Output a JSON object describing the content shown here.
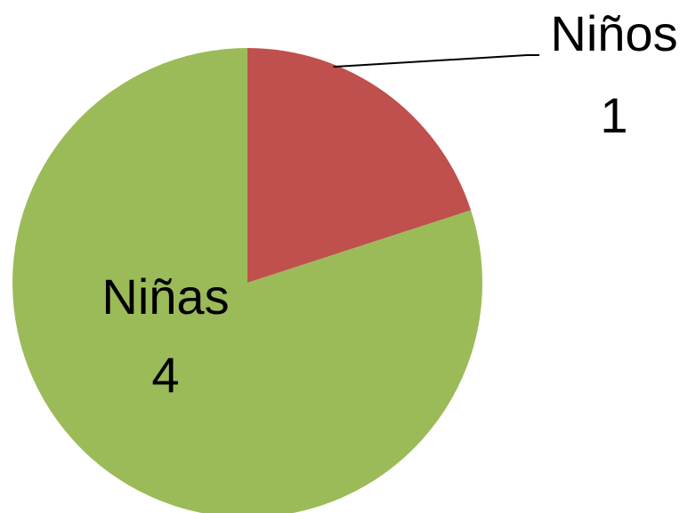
{
  "chart_data": {
    "type": "pie",
    "categories": [
      "Niños",
      "Niñas"
    ],
    "values": [
      1,
      4
    ],
    "colors": [
      "#c0504d",
      "#9bbb59"
    ]
  }
}
